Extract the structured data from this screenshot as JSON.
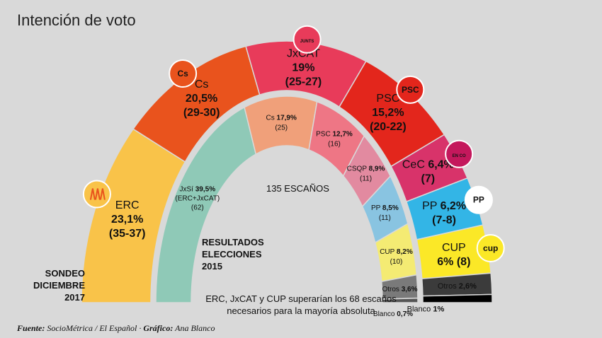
{
  "title": "Intención de voto",
  "chart_data": [
    {
      "type": "pie",
      "title": "SONDEO DICIEMBRE 2017",
      "ring": "outer",
      "slices": [
        {
          "name": "ERC",
          "pct": 23.1,
          "pct_label": "23,1%",
          "seats": "(35-37)",
          "color": "#f9c349",
          "logo": "erc"
        },
        {
          "name": "Cs",
          "pct": 20.5,
          "pct_label": "20,5%",
          "seats": "(29-30)",
          "color": "#e9531d",
          "logo": "cs"
        },
        {
          "name": "JxCAT",
          "pct": 19,
          "pct_label": "19%",
          "seats": "(25-27)",
          "color": "#e83b5a",
          "logo": "junts"
        },
        {
          "name": "PSC",
          "pct": 15.2,
          "pct_label": "15,2%",
          "seats": "(20-22)",
          "color": "#e3261c",
          "logo": "psc"
        },
        {
          "name": "CeC",
          "pct": 6.4,
          "pct_label": "6,4%",
          "seats": "(7)",
          "color": "#d8336a",
          "logo": "encomu"
        },
        {
          "name": "PP",
          "pct": 6.2,
          "pct_label": "6,2%",
          "seats": "(7-8)",
          "color": "#33b5e6",
          "logo": "pp"
        },
        {
          "name": "CUP",
          "pct": 6,
          "pct_label": "6%",
          "seats": "(8)",
          "color": "#fbe827",
          "logo": "cup"
        },
        {
          "name": "Otros",
          "pct": 2.6,
          "pct_label": "2,6%",
          "seats": "",
          "color": "#3b3b3b"
        },
        {
          "name": "Blanco",
          "pct": 1,
          "pct_label": "1%",
          "seats": "",
          "color": "#000000"
        }
      ]
    },
    {
      "type": "pie",
      "title": "RESULTADOS ELECCIONES 2015",
      "ring": "inner",
      "center_label": "135 ESCAÑOS",
      "slices": [
        {
          "name": "JxSí",
          "pct": 39.5,
          "pct_label": "39,5%",
          "seats": "(62)",
          "note": "(ERC+JxCAT)",
          "color": "#8fc9b7"
        },
        {
          "name": "Cs",
          "pct": 17.9,
          "pct_label": "17,9%",
          "seats": "(25)",
          "color": "#f0a07a"
        },
        {
          "name": "PSC",
          "pct": 12.7,
          "pct_label": "12,7%",
          "seats": "(16)",
          "color": "#ee7685"
        },
        {
          "name": "CSQP",
          "pct": 8.9,
          "pct_label": "8,9%",
          "seats": "(11)",
          "color": "#e28aa0"
        },
        {
          "name": "PP",
          "pct": 8.5,
          "pct_label": "8,5%",
          "seats": "(11)",
          "color": "#89c4e1"
        },
        {
          "name": "CUP",
          "pct": 8.2,
          "pct_label": "8,2%",
          "seats": "(10)",
          "color": "#f4eb73"
        },
        {
          "name": "Otros",
          "pct": 3.6,
          "pct_label": "3,6%",
          "seats": "",
          "color": "#7a7a7a"
        },
        {
          "name": "Blanco",
          "pct": 0.7,
          "pct_label": "0,7%",
          "seats": "",
          "color": "#555555"
        }
      ]
    }
  ],
  "labels": {
    "sondeo": [
      "SONDEO",
      "DICIEMBRE",
      "2017"
    ],
    "resultados": [
      "RESULTADOS",
      "ELECCIONES",
      "2015"
    ],
    "escanos": "135 ESCAÑOS",
    "note": [
      "ERC, JxCAT y CUP superarían los 68 escaños",
      "necesarios para la mayoría absoluta"
    ]
  },
  "logos": {
    "cs": "Cs",
    "junts": "JUNTS PER CATALUNYA",
    "psc": "PSC",
    "encomu": "EN COMÚ PODEM",
    "pp": "PP",
    "cup": "cup"
  },
  "source": {
    "fuente_label": "Fuente:",
    "fuente": "SocioMétrica / El Español",
    "grafico_label": "Gráfico:",
    "grafico": "Ana Blanco"
  }
}
